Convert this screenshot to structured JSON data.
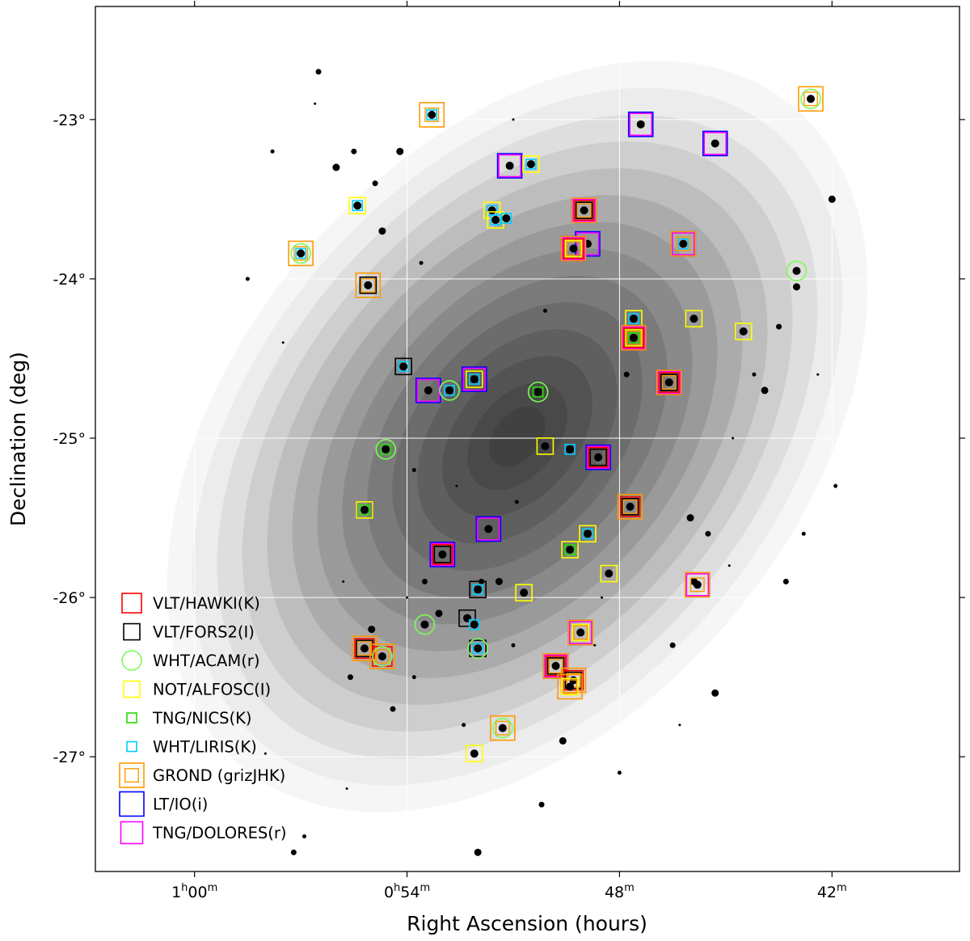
{
  "chart_data": {
    "type": "scatter",
    "title": "",
    "xlabel": "Right Ascension (hours)",
    "ylabel": "Declination (deg)",
    "xlim_ra_minutes_past_0h": [
      62.8,
      38.4
    ],
    "ylim_dec_deg": [
      -27.72,
      -22.29
    ],
    "x_inverted": true,
    "grid": true,
    "legend_placement": "lower-left",
    "x_ticks": [
      {
        "value": 60,
        "label_h": "1",
        "label_hsup": "h",
        "label_m": "00",
        "label_msup": "m"
      },
      {
        "value": 54,
        "label_h": "0",
        "label_hsup": "h",
        "label_m": "54",
        "label_msup": "m"
      },
      {
        "value": 48,
        "label_h": "",
        "label_hsup": "",
        "label_m": "48",
        "label_msup": "m"
      },
      {
        "value": 42,
        "label_h": "",
        "label_hsup": "",
        "label_m": "42",
        "label_msup": "m"
      }
    ],
    "y_ticks": [
      {
        "value": -23,
        "label": "-23°"
      },
      {
        "value": -24,
        "label": "-24°"
      },
      {
        "value": -25,
        "label": "-25°"
      },
      {
        "value": -26,
        "label": "-26°"
      },
      {
        "value": -27,
        "label": "-27°"
      }
    ],
    "legend": [
      {
        "key": "hawki",
        "label": "VLT/HAWKI(K)",
        "color": "#ff0000",
        "marker": "square",
        "size": 24
      },
      {
        "key": "fors2",
        "label": "VLT/FORS2(I)",
        "color": "#000000",
        "marker": "square",
        "size": 20
      },
      {
        "key": "acam",
        "label": "WHT/ACAM(r)",
        "color": "#7cfc58",
        "marker": "circle",
        "size": 24
      },
      {
        "key": "alfosc",
        "label": "NOT/ALFOSC(I)",
        "color": "#ffff00",
        "marker": "square",
        "size": 20
      },
      {
        "key": "nics",
        "label": "TNG/NICS(K)",
        "color": "#22dd00",
        "marker": "square",
        "size": 12
      },
      {
        "key": "liris",
        "label": "WHT/LIRIS(K)",
        "color": "#00ccff",
        "marker": "square",
        "size": 12
      },
      {
        "key": "grond",
        "label": "GROND (grizJHK)",
        "color": "#ff9900",
        "marker": "double-square",
        "size": 30
      },
      {
        "key": "io",
        "label": "LT/IO(i)",
        "color": "#0000ff",
        "marker": "square",
        "size": 30
      },
      {
        "key": "dolores",
        "label": "TNG/DOLORES(r)",
        "color": "#ff00ff",
        "marker": "square",
        "size": 27
      }
    ],
    "fields": [
      {
        "ra": 42.6,
        "dec": -22.87,
        "instruments": [
          "grond",
          "acam"
        ]
      },
      {
        "ra": 53.3,
        "dec": -22.97,
        "instruments": [
          "grond",
          "liris"
        ]
      },
      {
        "ra": 47.4,
        "dec": -23.03,
        "instruments": [
          "io",
          "dolores"
        ]
      },
      {
        "ra": 45.3,
        "dec": -23.15,
        "instruments": [
          "io",
          "dolores"
        ]
      },
      {
        "ra": 51.1,
        "dec": -23.29,
        "instruments": [
          "io",
          "dolores"
        ]
      },
      {
        "ra": 50.5,
        "dec": -23.28,
        "instruments": [
          "alfosc",
          "liris"
        ]
      },
      {
        "ra": 55.4,
        "dec": -23.54,
        "instruments": [
          "alfosc",
          "liris"
        ]
      },
      {
        "ra": 51.6,
        "dec": -23.57,
        "instruments": [
          "alfosc",
          "liris"
        ]
      },
      {
        "ra": 51.5,
        "dec": -23.63,
        "instruments": [
          "alfosc",
          "liris"
        ]
      },
      {
        "ra": 51.2,
        "dec": -23.62,
        "instruments": [
          "liris"
        ]
      },
      {
        "ra": 49.0,
        "dec": -23.57,
        "instruments": [
          "hawki",
          "fors2",
          "grond",
          "io",
          "dolores"
        ]
      },
      {
        "ra": 48.9,
        "dec": -23.78,
        "instruments": [
          "io",
          "dolores"
        ]
      },
      {
        "ra": 49.3,
        "dec": -23.81,
        "instruments": [
          "hawki",
          "grond",
          "alfosc",
          "io",
          "dolores"
        ]
      },
      {
        "ra": 46.2,
        "dec": -23.78,
        "instruments": [
          "grond",
          "io",
          "dolores",
          "liris"
        ]
      },
      {
        "ra": 57.0,
        "dec": -23.84,
        "instruments": [
          "grond",
          "acam",
          "liris"
        ]
      },
      {
        "ra": 43.0,
        "dec": -23.95,
        "instruments": [
          "acam"
        ]
      },
      {
        "ra": 55.1,
        "dec": -24.04,
        "instruments": [
          "grond",
          "fors2"
        ]
      },
      {
        "ra": 47.6,
        "dec": -24.25,
        "instruments": [
          "alfosc",
          "liris"
        ]
      },
      {
        "ra": 45.9,
        "dec": -24.25,
        "instruments": [
          "alfosc"
        ]
      },
      {
        "ra": 44.5,
        "dec": -24.33,
        "instruments": [
          "alfosc"
        ]
      },
      {
        "ra": 47.6,
        "dec": -24.37,
        "instruments": [
          "hawki",
          "fors2",
          "grond",
          "alfosc",
          "nics",
          "io",
          "dolores"
        ]
      },
      {
        "ra": 54.1,
        "dec": -24.55,
        "instruments": [
          "fors2",
          "liris"
        ]
      },
      {
        "ra": 52.1,
        "dec": -24.63,
        "instruments": [
          "fors2",
          "alfosc",
          "liris",
          "io",
          "dolores"
        ]
      },
      {
        "ra": 46.6,
        "dec": -24.65,
        "instruments": [
          "hawki",
          "fors2",
          "grond",
          "io",
          "dolores"
        ]
      },
      {
        "ra": 53.4,
        "dec": -24.7,
        "instruments": [
          "io",
          "dolores"
        ]
      },
      {
        "ra": 52.8,
        "dec": -24.7,
        "instruments": [
          "acam",
          "liris"
        ]
      },
      {
        "ra": 50.3,
        "dec": -24.71,
        "instruments": [
          "acam",
          "nics"
        ]
      },
      {
        "ra": 54.6,
        "dec": -25.07,
        "instruments": [
          "acam",
          "nics"
        ]
      },
      {
        "ra": 50.1,
        "dec": -25.05,
        "instruments": [
          "alfosc"
        ]
      },
      {
        "ra": 49.4,
        "dec": -25.07,
        "instruments": [
          "liris"
        ]
      },
      {
        "ra": 48.6,
        "dec": -25.12,
        "instruments": [
          "hawki",
          "fors2",
          "io",
          "dolores"
        ]
      },
      {
        "ra": 55.2,
        "dec": -25.45,
        "instruments": [
          "fors2",
          "alfosc",
          "nics"
        ]
      },
      {
        "ra": 47.7,
        "dec": -25.43,
        "instruments": [
          "hawki",
          "fors2",
          "grond"
        ]
      },
      {
        "ra": 51.7,
        "dec": -25.57,
        "instruments": [
          "io",
          "dolores"
        ]
      },
      {
        "ra": 48.9,
        "dec": -25.6,
        "instruments": [
          "alfosc",
          "liris"
        ]
      },
      {
        "ra": 49.4,
        "dec": -25.7,
        "instruments": [
          "alfosc",
          "nics"
        ]
      },
      {
        "ra": 53.0,
        "dec": -25.73,
        "instruments": [
          "hawki",
          "fors2",
          "io",
          "dolores"
        ]
      },
      {
        "ra": 48.3,
        "dec": -25.85,
        "instruments": [
          "alfosc"
        ]
      },
      {
        "ra": 45.8,
        "dec": -25.92,
        "instruments": [
          "grond",
          "io",
          "dolores"
        ]
      },
      {
        "ra": 52.0,
        "dec": -25.95,
        "instruments": [
          "fors2",
          "liris"
        ]
      },
      {
        "ra": 50.7,
        "dec": -25.97,
        "instruments": [
          "alfosc"
        ]
      },
      {
        "ra": 53.5,
        "dec": -26.17,
        "instruments": [
          "acam"
        ]
      },
      {
        "ra": 52.3,
        "dec": -26.13,
        "instruments": [
          "fors2"
        ]
      },
      {
        "ra": 52.1,
        "dec": -26.17,
        "instruments": [
          "liris"
        ]
      },
      {
        "ra": 49.1,
        "dec": -26.22,
        "instruments": [
          "io",
          "dolores",
          "alfosc",
          "grond"
        ]
      },
      {
        "ra": 55.2,
        "dec": -26.32,
        "instruments": [
          "hawki",
          "fors2",
          "grond"
        ]
      },
      {
        "ra": 54.7,
        "dec": -26.37,
        "instruments": [
          "hawki",
          "grond",
          "acam"
        ]
      },
      {
        "ra": 52.0,
        "dec": -26.32,
        "instruments": [
          "fors2",
          "acam",
          "liris"
        ]
      },
      {
        "ra": 49.8,
        "dec": -26.43,
        "instruments": [
          "hawki",
          "fors2",
          "grond",
          "io",
          "dolores"
        ]
      },
      {
        "ra": 49.3,
        "dec": -26.52,
        "instruments": [
          "hawki",
          "fors2",
          "grond"
        ]
      },
      {
        "ra": 49.4,
        "dec": -26.56,
        "instruments": [
          "grond",
          "alfosc"
        ]
      },
      {
        "ra": 51.3,
        "dec": -26.82,
        "instruments": [
          "grond",
          "acam"
        ]
      },
      {
        "ra": 52.1,
        "dec": -26.98,
        "instruments": [
          "alfosc"
        ]
      }
    ],
    "background_stars": [
      [
        58.0,
        -26.98
      ],
      [
        57.8,
        -23.2
      ],
      [
        56.5,
        -22.7
      ],
      [
        56.0,
        -23.3
      ],
      [
        55.8,
        -25.9
      ],
      [
        56.9,
        -27.5
      ],
      [
        55.6,
        -26.5
      ],
      [
        54.2,
        -23.2
      ],
      [
        54.0,
        -26.0
      ],
      [
        53.8,
        -26.5
      ],
      [
        53.5,
        -25.9
      ],
      [
        53.1,
        -26.1
      ],
      [
        52.6,
        -25.3
      ],
      [
        52.4,
        -26.8
      ],
      [
        51.9,
        -25.9
      ],
      [
        51.4,
        -25.9
      ],
      [
        51.0,
        -23.0
      ],
      [
        50.9,
        -25.4
      ],
      [
        50.2,
        -27.3
      ],
      [
        49.6,
        -26.9
      ],
      [
        48.7,
        -26.3
      ],
      [
        48.0,
        -27.1
      ],
      [
        46.5,
        -26.3
      ],
      [
        45.3,
        -26.6
      ],
      [
        44.8,
        -25.0
      ],
      [
        44.2,
        -24.6
      ],
      [
        43.5,
        -24.3
      ],
      [
        43.0,
        -24.05
      ],
      [
        42.4,
        -24.6
      ],
      [
        41.9,
        -25.3
      ],
      [
        45.5,
        -25.6
      ],
      [
        46.0,
        -25.5
      ],
      [
        44.9,
        -25.8
      ],
      [
        53.8,
        -25.2
      ],
      [
        55.5,
        -23.2
      ],
      [
        54.7,
        -23.7
      ],
      [
        57.5,
        -24.4
      ],
      [
        58.5,
        -24.0
      ],
      [
        47.8,
        -24.6
      ],
      [
        55.0,
        -26.2
      ],
      [
        55.7,
        -27.2
      ],
      [
        51.0,
        -26.3
      ],
      [
        57.2,
        -27.6
      ],
      [
        52.0,
        -27.6
      ],
      [
        48.5,
        -26.0
      ],
      [
        50.1,
        -24.2
      ],
      [
        54.4,
        -26.7
      ],
      [
        45.9,
        -25.9
      ],
      [
        46.3,
        -26.8
      ],
      [
        42.8,
        -25.6
      ],
      [
        43.3,
        -25.9
      ],
      [
        43.9,
        -24.7
      ],
      [
        56.6,
        -22.9
      ],
      [
        53.6,
        -23.9
      ],
      [
        54.9,
        -23.4
      ],
      [
        42.0,
        -23.5
      ]
    ]
  }
}
